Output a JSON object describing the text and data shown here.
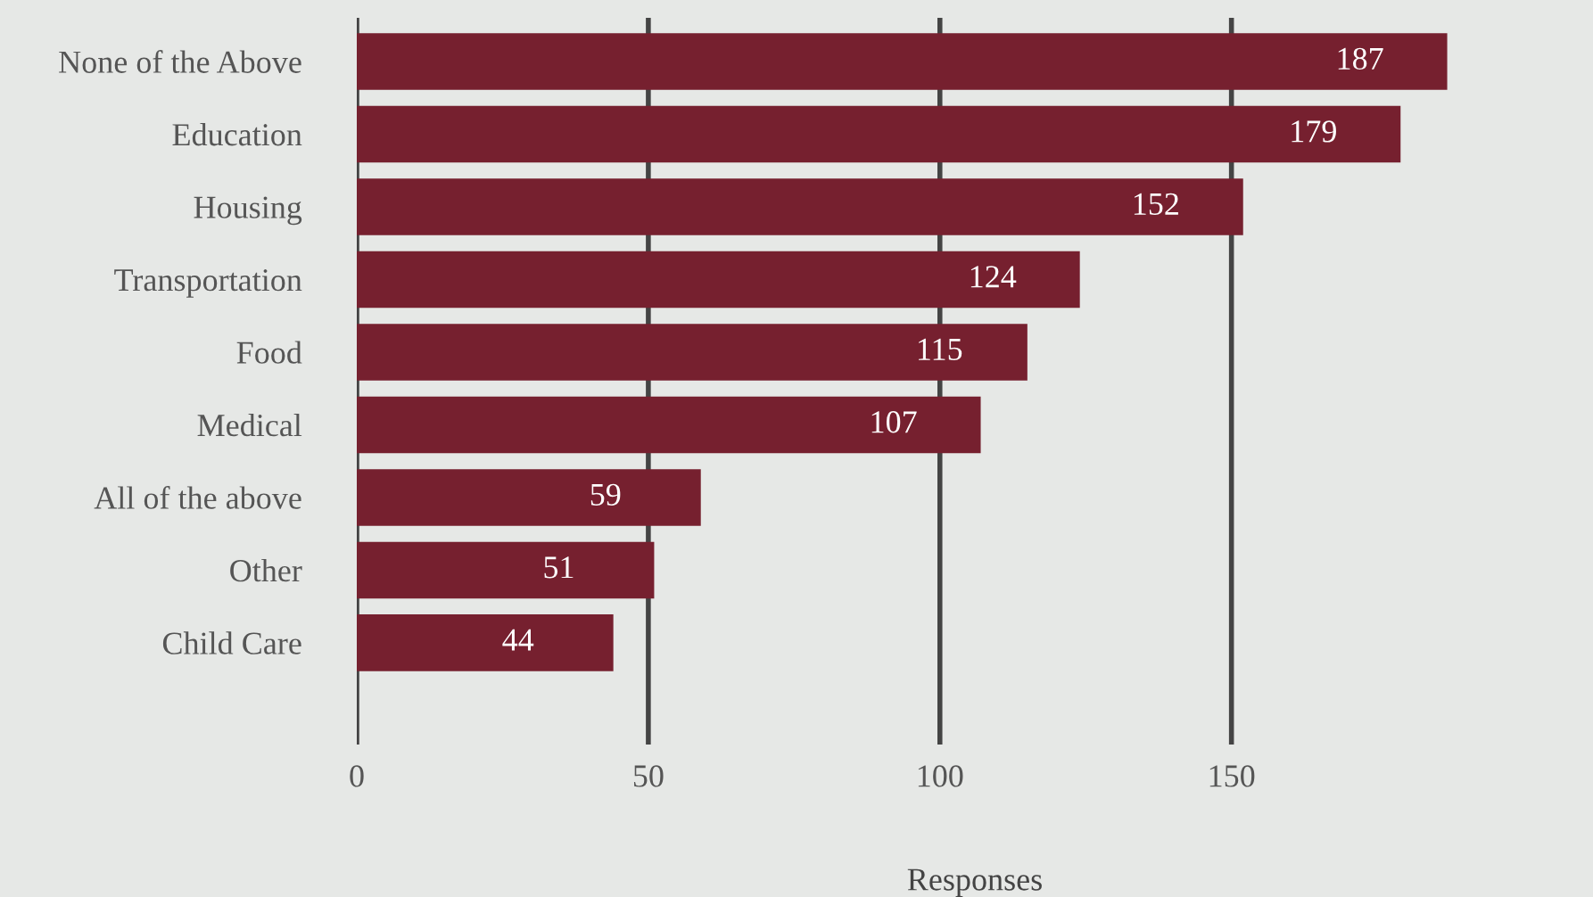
{
  "chart_data": {
    "type": "bar",
    "orientation": "horizontal",
    "xlabel": "Responses",
    "categories": [
      "None of the Above",
      "Education",
      "Housing",
      "Transportation",
      "Food",
      "Medical",
      "All of the above",
      "Other",
      "Child Care"
    ],
    "values": [
      187,
      179,
      152,
      124,
      115,
      107,
      59,
      51,
      44
    ],
    "color": "#76202f",
    "xlim": [
      0,
      212
    ],
    "xticks": [
      0,
      50,
      100,
      150
    ],
    "grid": "x",
    "data_labels": true
  }
}
